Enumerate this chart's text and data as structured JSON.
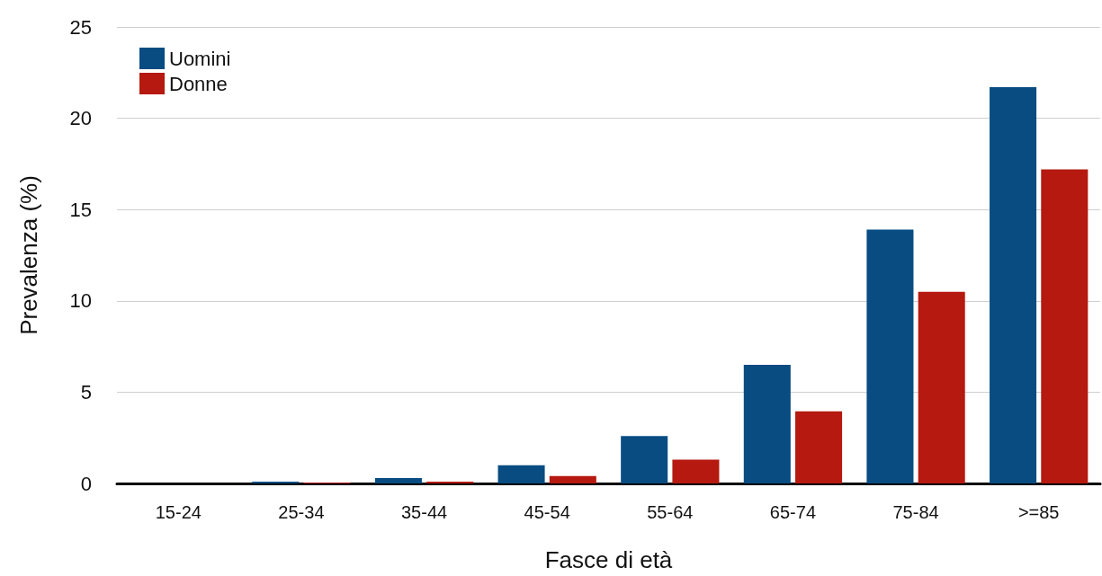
{
  "chart_data": {
    "type": "bar",
    "xlabel": "Fasce di età",
    "ylabel": "Prevalenza (%)",
    "categories": [
      "15-24",
      "25-34",
      "35-44",
      "45-54",
      "55-64",
      "65-74",
      "75-84",
      ">=85"
    ],
    "series": [
      {
        "name": "Uomini",
        "color": "#084c82",
        "values": [
          0,
          0.1,
          0.3,
          1.0,
          2.6,
          6.5,
          13.9,
          21.7
        ]
      },
      {
        "name": "Donne",
        "color": "#b5190f",
        "values": [
          0,
          0.05,
          0.1,
          0.4,
          1.3,
          3.95,
          10.5,
          17.2
        ]
      }
    ],
    "ylim": [
      0,
      25
    ],
    "yticks": [
      0,
      5,
      10,
      15,
      20,
      25
    ],
    "grid": "y",
    "legend": "top left"
  }
}
